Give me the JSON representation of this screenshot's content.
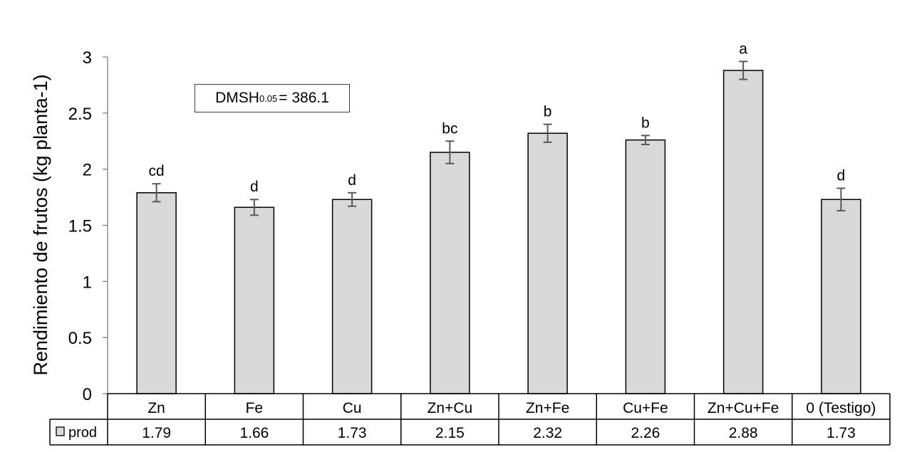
{
  "chart_data": {
    "type": "bar",
    "categories": [
      "Zn",
      "Fe",
      "Cu",
      "Zn+Cu",
      "Zn+Fe",
      "Cu+Fe",
      "Zn+Cu+Fe",
      "0 (Testigo)"
    ],
    "series": [
      {
        "name": "prod",
        "values": [
          1.79,
          1.66,
          1.73,
          2.15,
          2.32,
          2.26,
          2.88,
          1.73
        ],
        "errors": [
          0.08,
          0.07,
          0.06,
          0.1,
          0.08,
          0.04,
          0.08,
          0.1
        ],
        "letters": [
          "cd",
          "d",
          "d",
          "bc",
          "b",
          "b",
          "a",
          "d"
        ]
      }
    ],
    "ylabel": "Rendimiento de frutos (kg planta-1)",
    "ylim": [
      0,
      3
    ],
    "yticks": [
      "0",
      "0.5",
      "1",
      "1.5",
      "2",
      "2.5",
      "3"
    ],
    "data_table": true,
    "grid": false,
    "bar_color": "#d9d9d9",
    "annotation": {
      "prefix": "DMSH",
      "subscript": "0.05",
      "text": "= 386.1"
    }
  }
}
